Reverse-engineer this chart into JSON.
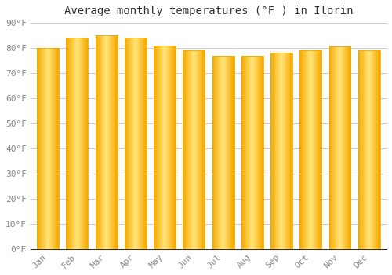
{
  "months": [
    "Jan",
    "Feb",
    "Mar",
    "Apr",
    "May",
    "Jun",
    "Jul",
    "Aug",
    "Sep",
    "Oct",
    "Nov",
    "Dec"
  ],
  "values": [
    80,
    84,
    85,
    84,
    81,
    79,
    77,
    77,
    78,
    79,
    80.5,
    79
  ],
  "title": "Average monthly temperatures (°F ) in Ilorin",
  "ylim": [
    0,
    90
  ],
  "yticks": [
    0,
    10,
    20,
    30,
    40,
    50,
    60,
    70,
    80,
    90
  ],
  "bar_color_center": "#FFE57A",
  "bar_color_edge": "#F5A800",
  "bar_color_mid": "#FFC107",
  "grid_color": "#CCCCCC",
  "background_color": "#FFFFFF",
  "title_fontsize": 10,
  "tick_fontsize": 8,
  "tick_color": "#888888",
  "bar_width": 0.75,
  "n_gradient_steps": 40
}
